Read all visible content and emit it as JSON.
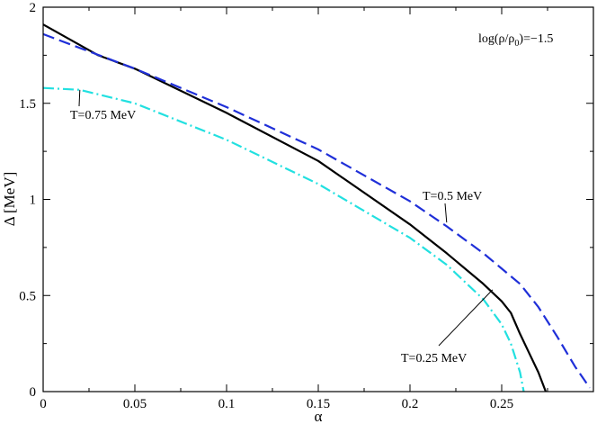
{
  "chart_data": {
    "type": "line",
    "xlabel": "α",
    "ylabel": "Δ [MeV]",
    "xlim": [
      0,
      0.3
    ],
    "ylim": [
      0,
      2
    ],
    "x_ticks": [
      0,
      0.05,
      0.1,
      0.15,
      0.2,
      0.25
    ],
    "x_tick_labels": [
      "0",
      "0.05",
      "0.1",
      "0.15",
      "0.2",
      "0.25"
    ],
    "y_ticks": [
      0,
      0.5,
      1,
      1.5,
      2
    ],
    "y_tick_labels": [
      "0",
      "0.5",
      "1",
      "1.5",
      "2"
    ],
    "annotation_corner": "log(ρ/ρ0)=−1.5",
    "series": [
      {
        "name": "T=0.25 MeV",
        "color": "#000000",
        "dash": "solid",
        "x": [
          0,
          0.03,
          0.05,
          0.1,
          0.15,
          0.2,
          0.22,
          0.24,
          0.25,
          0.255,
          0.26,
          0.265,
          0.27,
          0.274
        ],
        "y": [
          1.91,
          1.75,
          1.68,
          1.45,
          1.2,
          0.87,
          0.72,
          0.56,
          0.47,
          0.41,
          0.3,
          0.2,
          0.1,
          0.0
        ]
      },
      {
        "name": "T=0.5 MeV",
        "color": "#1f2fd8",
        "dash": "long-dash",
        "x": [
          0,
          0.05,
          0.1,
          0.15,
          0.2,
          0.22,
          0.24,
          0.25,
          0.26,
          0.27,
          0.28,
          0.29,
          0.298
        ],
        "y": [
          1.86,
          1.68,
          1.48,
          1.26,
          0.99,
          0.86,
          0.72,
          0.64,
          0.56,
          0.44,
          0.29,
          0.13,
          0.02
        ]
      },
      {
        "name": "T=0.75 MeV",
        "color": "#22e0e0",
        "dash": "dash-dot",
        "x": [
          0,
          0.02,
          0.05,
          0.1,
          0.15,
          0.2,
          0.22,
          0.24,
          0.25,
          0.255,
          0.26,
          0.262
        ],
        "y": [
          1.58,
          1.57,
          1.5,
          1.31,
          1.08,
          0.8,
          0.66,
          0.48,
          0.35,
          0.25,
          0.1,
          0.0
        ]
      }
    ],
    "labels": [
      {
        "text": "T=0.75 MeV",
        "pointer_to": [
          0.02,
          1.57
        ]
      },
      {
        "text": "T=0.5 MeV",
        "pointer_to": [
          0.22,
          0.88
        ]
      },
      {
        "text": "T=0.25 MeV",
        "pointer_to": [
          0.245,
          0.53
        ]
      }
    ]
  }
}
